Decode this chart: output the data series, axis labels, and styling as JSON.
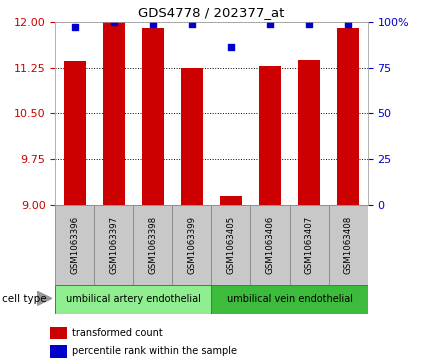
{
  "title": "GDS4778 / 202377_at",
  "samples": [
    "GSM1063396",
    "GSM1063397",
    "GSM1063398",
    "GSM1063399",
    "GSM1063405",
    "GSM1063406",
    "GSM1063407",
    "GSM1063408"
  ],
  "transformed_counts": [
    11.35,
    12.0,
    11.9,
    11.25,
    9.15,
    11.27,
    11.38,
    11.9
  ],
  "percentile_ranks": [
    97,
    100,
    99,
    99,
    86,
    99,
    99,
    99
  ],
  "ylim_left": [
    9,
    12
  ],
  "ylim_right": [
    0,
    100
  ],
  "yticks_left": [
    9,
    9.75,
    10.5,
    11.25,
    12
  ],
  "yticks_right": [
    0,
    25,
    50,
    75,
    100
  ],
  "bar_color": "#cc0000",
  "dot_color": "#0000cc",
  "bar_width": 0.55,
  "cell_types": [
    {
      "label": "umbilical artery endothelial",
      "start": 0,
      "end": 4,
      "color": "#90ee90"
    },
    {
      "label": "umbilical vein endothelial",
      "start": 4,
      "end": 8,
      "color": "#3dbb3d"
    }
  ],
  "legend_tc_label": "transformed count",
  "legend_pr_label": "percentile rank within the sample",
  "cell_type_label": "cell type",
  "background_color": "#ffffff",
  "grid_color": "#000000",
  "sample_box_color": "#c8c8c8",
  "tick_label_left_color": "#cc0000",
  "tick_label_right_color": "#0000cc",
  "bar_color_legend": "#cc0000",
  "dot_color_legend": "#0000cc"
}
